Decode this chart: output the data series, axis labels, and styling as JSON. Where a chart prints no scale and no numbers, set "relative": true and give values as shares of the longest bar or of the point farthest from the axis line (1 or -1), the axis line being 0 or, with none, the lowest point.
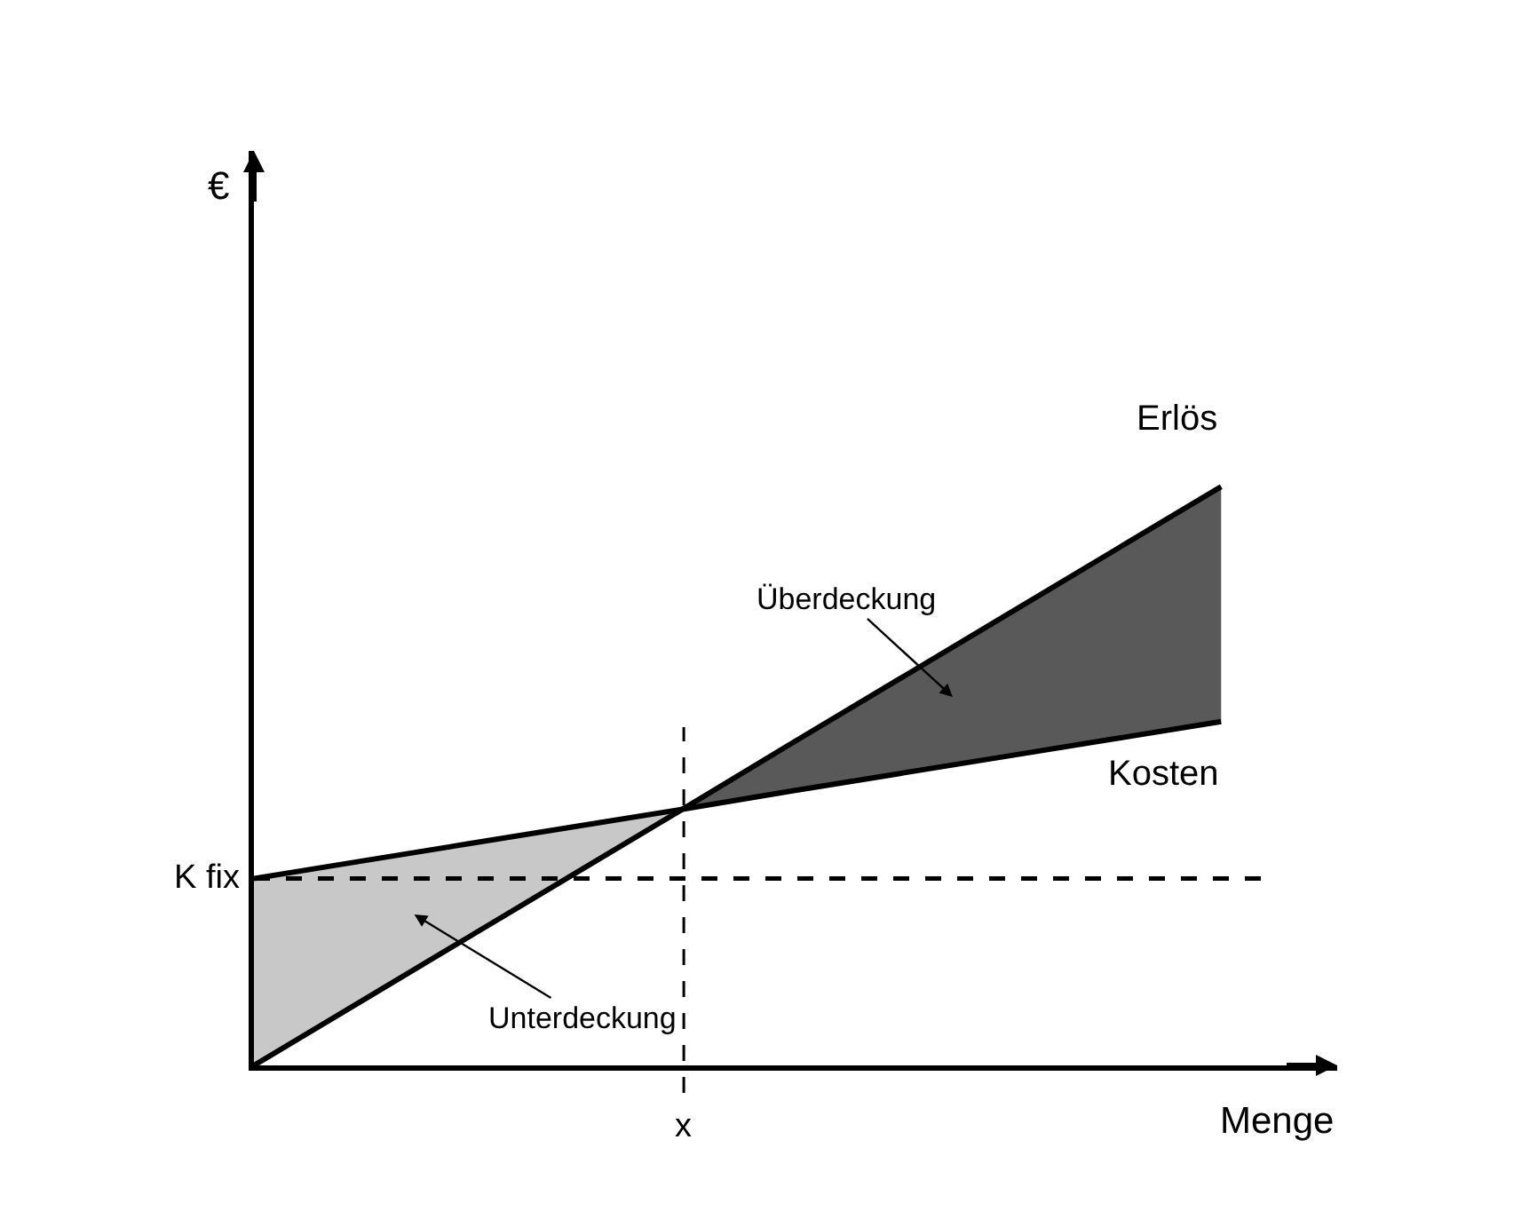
{
  "chart_data": {
    "type": "line",
    "relative": true,
    "xlabel": "Menge",
    "categories": [
      null,
      null,
      null,
      null,
      null,
      null,
      null,
      null,
      null,
      null
    ],
    "series": [
      {
        "name": "Erlös",
        "color": "#000000",
        "values": [
          0,
          0.111,
          0.222,
          0.333,
          0.444,
          0.556,
          0.667,
          0.778,
          0.889,
          1
        ]
      },
      {
        "name": "Kosten",
        "color": "#000000",
        "values": [
          0.323,
          0.353,
          0.383,
          0.413,
          0.443,
          0.474,
          0.504,
          0.534,
          0.564,
          0.594
        ]
      },
      {
        "type": "area",
        "color": "#c8c8c8",
        "values": [
          0.323,
          0.353,
          0.383,
          0.413,
          0.443,
          null,
          null,
          null,
          null,
          null
        ]
      },
      {
        "type": "area",
        "color": "#595959",
        "values": [
          null,
          null,
          null,
          null,
          0.444,
          0.556,
          0.667,
          0.778,
          0.889,
          1
        ]
      }
    ],
    "ref_lines": [
      {
        "axis": "y",
        "value": 0.323,
        "label": "K fix",
        "line_style": "dashed"
      }
    ],
    "annotations": [
      "Überdeckung",
      "Unterdeckung",
      "x",
      "€"
    ],
    "legend": false,
    "marker": "none",
    "line_style": "solid"
  }
}
